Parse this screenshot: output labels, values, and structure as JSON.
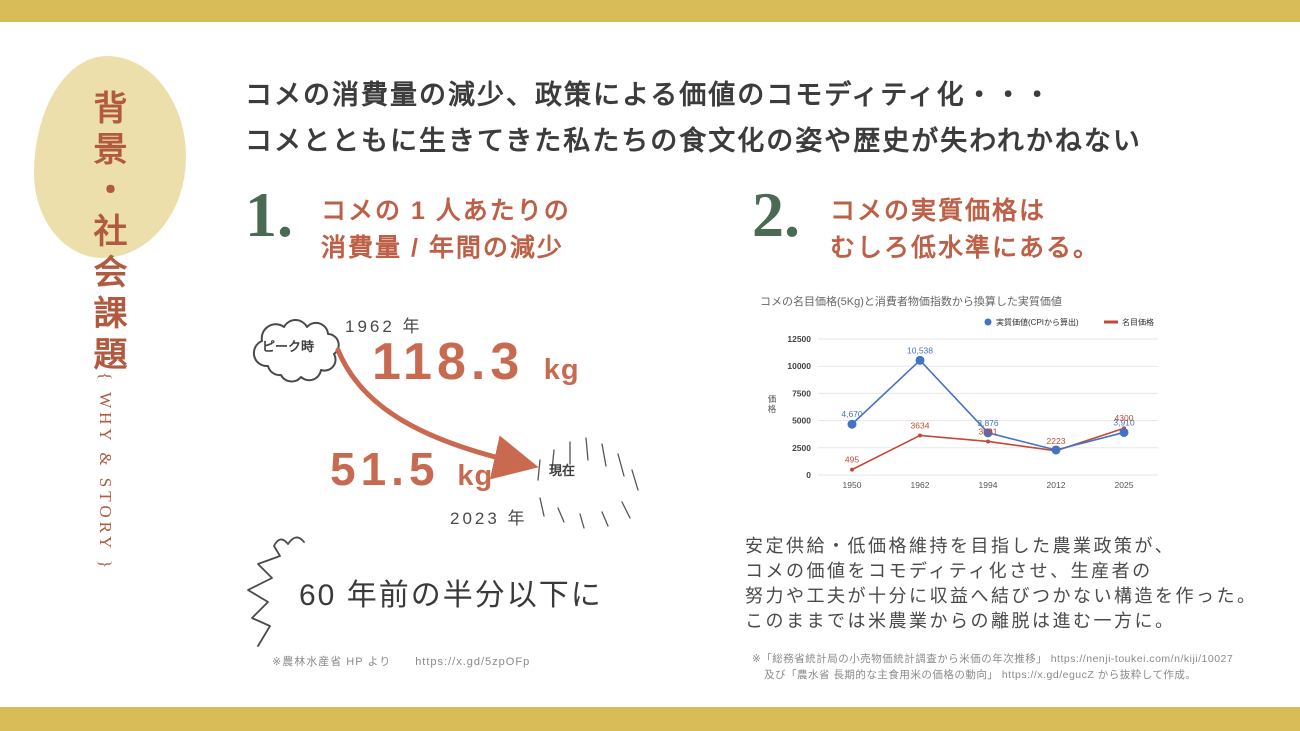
{
  "sidebar": {
    "title": "背景・社会課題",
    "tagline": "{ WHY & STORY }"
  },
  "header": {
    "line1": "コメの消費量の減少、政策による価値のコモディティ化・・・",
    "line2": "コメとともに生きてきた私たちの食文化の姿や歴史が失われかねない"
  },
  "section1": {
    "number": "1.",
    "title1": "コメの 1 人あたりの",
    "title2": "消費量 / 年間の減少",
    "peak_bubble": "ピーク時",
    "peak_year": "1962 年",
    "peak_value": "118.3",
    "peak_unit": "kg",
    "low_value": "51.5",
    "low_unit": "kg",
    "now_label": "現在",
    "low_year": "2023 年",
    "highlight": "60 年前の半分以下に",
    "source": "※農林水産省 HP より　　https://x.gd/5zpOFp"
  },
  "section2": {
    "number": "2.",
    "title1": "コメの実質価格は",
    "title2": "むしろ低水準にある。",
    "body_lines": [
      "安定供給・低価格維持を目指した農業政策が、",
      "コメの価値をコモディティ化させ、生産者の",
      "努力や工夫が十分に収益へ結びつかない構造を作った。",
      "このままでは米農業からの離脱は進む一方に。"
    ],
    "source_line1": "※「総務省統計局の小売物価統計調査から米価の年次推移」 https://nenji-toukei.com/n/kiji/10027",
    "source_line2": "及び「農水省 長期的な主食用米の価格の動向」 https://x.gd/egucZ から抜粋して作成。"
  },
  "chart_data": {
    "type": "line",
    "title": "コメの名目価格(5Kg)と消費者物価指数から換算した実質価値",
    "ylabel": "価格",
    "x": [
      "1950",
      "1962",
      "1994",
      "2012",
      "2025"
    ],
    "ylim": [
      0,
      12500
    ],
    "yticks": [
      0,
      2500,
      5000,
      7500,
      10000,
      12500
    ],
    "grid": true,
    "legend_position": "top-right",
    "series": [
      {
        "name": "実質価値(CPIから算出)",
        "color": "#4472c4",
        "marker": "circle",
        "values": [
          4670,
          10538,
          3876,
          2300,
          3910
        ],
        "labels": [
          "4,670",
          "10,538",
          "3,876",
          "",
          "3,910"
        ]
      },
      {
        "name": "名目価格",
        "color": "#c54836",
        "marker": "dash",
        "values": [
          495,
          3634,
          3081,
          2223,
          4300
        ],
        "labels": [
          "495",
          "3634",
          "3081",
          "2223",
          "4300"
        ]
      }
    ]
  },
  "colors": {
    "band": "#d8bc57",
    "blob": "#ecdfab",
    "terracotta": "#bd6047",
    "green": "#4a6a53",
    "ink": "#3c3c3c"
  }
}
